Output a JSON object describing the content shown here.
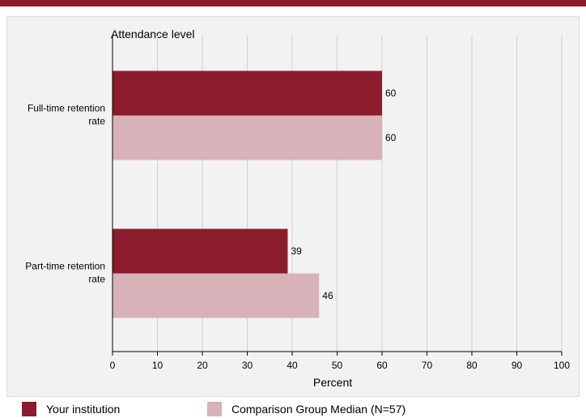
{
  "chart_data": {
    "type": "bar",
    "orientation": "horizontal",
    "title": "Attendance level",
    "xlabel": "Percent",
    "ylabel": "",
    "xlim": [
      0,
      100
    ],
    "xticks": [
      0,
      10,
      20,
      30,
      40,
      50,
      60,
      70,
      80,
      90,
      100
    ],
    "grid": true,
    "categories": [
      "Full-time retention rate",
      "Part-time retention rate"
    ],
    "category_lines": [
      [
        "Full-time retention",
        "rate"
      ],
      [
        "Part-time retention",
        "rate"
      ]
    ],
    "series": [
      {
        "name": "Your institution",
        "values": [
          60,
          39
        ],
        "color": "#8a1c2e"
      },
      {
        "name": "Comparison Group Median (N=57)",
        "values": [
          60,
          46
        ],
        "color": "#d8b2b9"
      }
    ],
    "legend_position": "bottom"
  }
}
